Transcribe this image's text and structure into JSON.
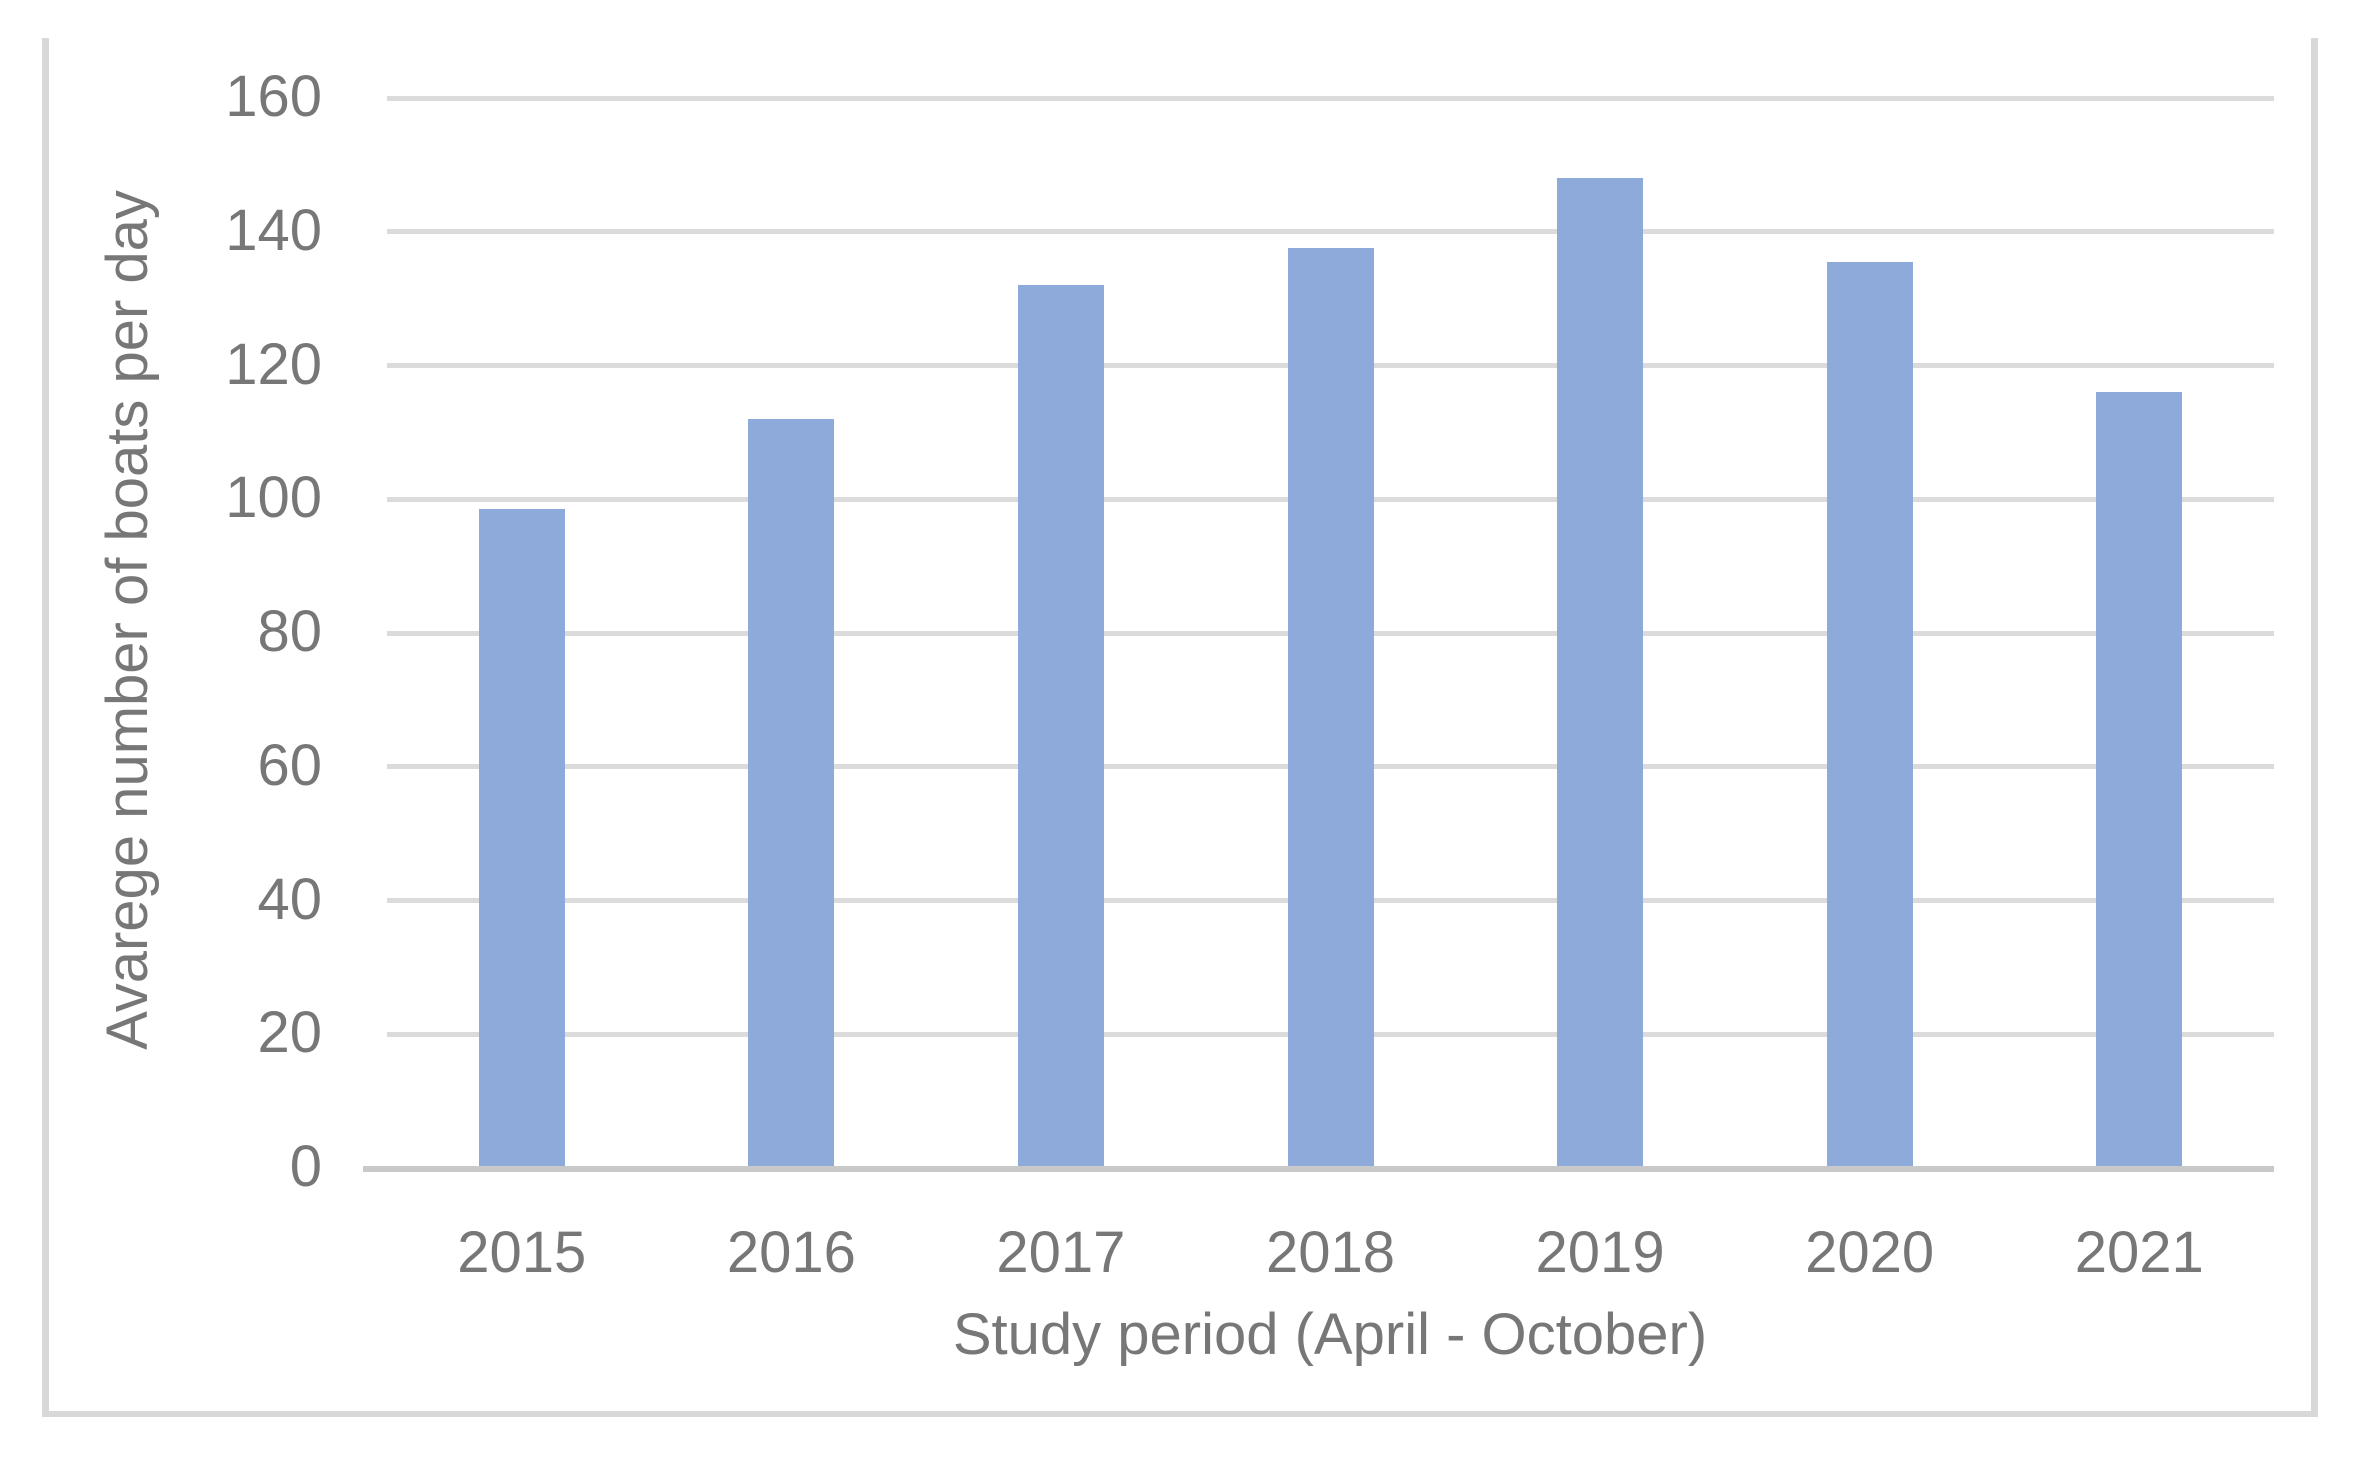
{
  "chart_data": {
    "type": "bar",
    "title": "",
    "categories": [
      "2015",
      "2016",
      "2017",
      "2018",
      "2019",
      "2020",
      "2021"
    ],
    "values": [
      98.5,
      112,
      132,
      137.5,
      148,
      135.5,
      116
    ],
    "xlabel": "Study period (April - October)",
    "ylabel": "Avarege number of boats per day",
    "ylim": [
      0,
      160
    ],
    "yticks": [
      0,
      20,
      40,
      60,
      80,
      100,
      120,
      140,
      160
    ],
    "grid": "horizontal",
    "legend": "none",
    "colors": {
      "bar": "#8EAADB",
      "gridline": "#DBDBDB",
      "axis_line": "#C9C9C9",
      "text": "#777777",
      "figure_border": "#D8D8D8",
      "background": "#FFFFFF"
    }
  }
}
